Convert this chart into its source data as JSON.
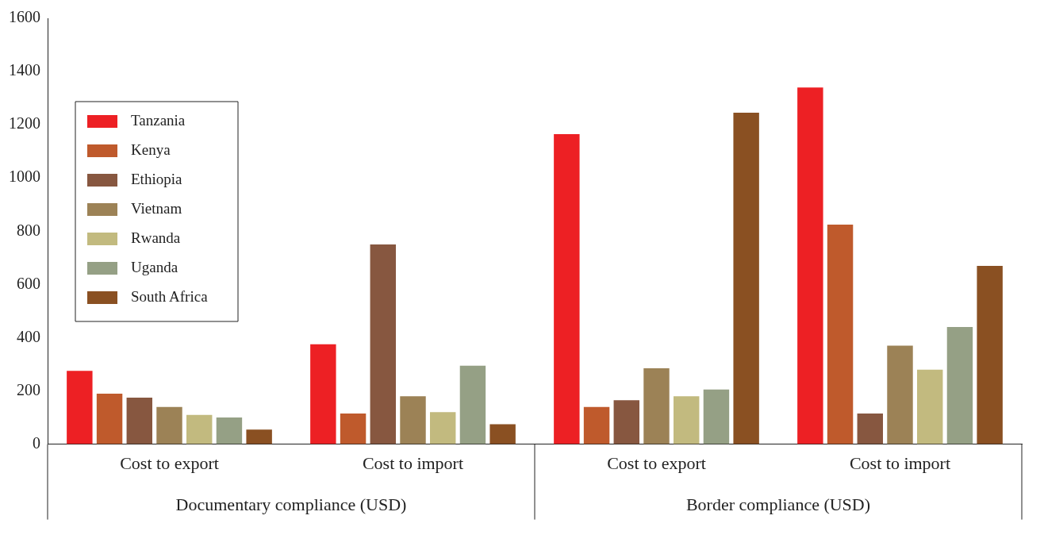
{
  "chart_data": {
    "type": "bar",
    "categories": [
      "Cost to export",
      "Cost to import",
      "Cost to export",
      "Cost to import"
    ],
    "annotations": [
      "Documentary compliance (USD)",
      "Border compliance (USD)"
    ],
    "series": [
      {
        "name": "Tanzania",
        "color": "#ed2024",
        "values": [
          275,
          375,
          1165,
          1340
        ]
      },
      {
        "name": "Kenya",
        "color": "#bf5a2c",
        "values": [
          190,
          115,
          140,
          825
        ]
      },
      {
        "name": "Ethiopia",
        "color": "#875740",
        "values": [
          175,
          750,
          165,
          115
        ]
      },
      {
        "name": "Vietnam",
        "color": "#9c8256",
        "values": [
          140,
          180,
          285,
          370
        ]
      },
      {
        "name": "Rwanda",
        "color": "#c2ba7f",
        "values": [
          110,
          120,
          180,
          280
        ]
      },
      {
        "name": "Uganda",
        "color": "#95a085",
        "values": [
          100,
          295,
          205,
          440
        ]
      },
      {
        "name": "South Africa",
        "color": "#8a5022",
        "values": [
          55,
          75,
          1245,
          670
        ]
      }
    ],
    "ylim": [
      0,
      1600
    ],
    "yticks": [
      0,
      200,
      400,
      600,
      800,
      1000,
      1200,
      1400,
      1600
    ],
    "grid": false,
    "legend": "top left"
  }
}
